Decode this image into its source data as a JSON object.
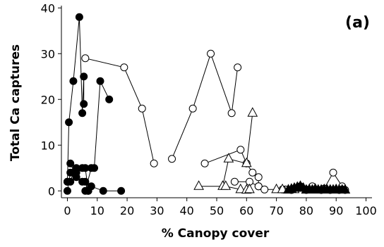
{
  "chart_data": {
    "type": "scatter",
    "panel_label": "(a)",
    "xlabel": "% Canopy cover",
    "ylabel": "Total Ca captures",
    "xlim": [
      -2,
      102
    ],
    "ylim": [
      -1.5,
      40.5
    ],
    "x_ticks": [
      0,
      10,
      20,
      30,
      40,
      50,
      60,
      70,
      80,
      90,
      100
    ],
    "y_ticks": [
      0,
      10,
      20,
      30,
      40
    ],
    "grid": false,
    "legend": "none",
    "series": [
      {
        "marker": "filled-circle",
        "color": "#000000",
        "segments": [
          [
            [
              0,
              2
            ],
            [
              0.5,
              15
            ],
            [
              2,
              24
            ],
            [
              4,
              38
            ],
            [
              5,
              17
            ],
            [
              5.5,
              25
            ],
            [
              5.5,
              19
            ]
          ],
          [
            [
              0,
              0
            ],
            [
              1,
              4
            ],
            [
              3,
              5
            ],
            [
              5,
              5
            ],
            [
              6,
              5
            ],
            [
              7,
              0
            ]
          ],
          [
            [
              1,
              6
            ],
            [
              3,
              3
            ],
            [
              5,
              2
            ],
            [
              6,
              2
            ],
            [
              7,
              0
            ]
          ],
          [
            [
              6,
              0
            ],
            [
              8,
              5
            ],
            [
              9,
              5
            ],
            [
              11,
              24
            ],
            [
              14,
              20
            ]
          ],
          [
            [
              8,
              1
            ],
            [
              12,
              0
            ],
            [
              18,
              0
            ]
          ],
          [
            [
              0,
              2
            ],
            [
              1,
              2
            ],
            [
              2,
              4
            ],
            [
              3,
              4
            ]
          ]
        ]
      },
      {
        "marker": "open-circle",
        "color": "#000000",
        "segments": [
          [
            [
              6,
              29
            ],
            [
              19,
              27
            ],
            [
              25,
              18
            ],
            [
              29,
              6
            ]
          ],
          [
            [
              35,
              7
            ],
            [
              42,
              18
            ],
            [
              48,
              30
            ],
            [
              55,
              17
            ],
            [
              57,
              27
            ]
          ],
          [
            [
              46,
              6
            ],
            [
              58,
              9
            ],
            [
              60,
              6
            ],
            [
              62,
              4
            ],
            [
              64,
              3
            ],
            [
              64,
              1
            ]
          ],
          [
            [
              56,
              2
            ],
            [
              61,
              2
            ],
            [
              64,
              1
            ],
            [
              66,
              0.3
            ],
            [
              73,
              0.3
            ]
          ],
          [
            [
              72,
              0.3
            ],
            [
              78,
              1
            ],
            [
              82,
              1
            ],
            [
              86,
              0.5
            ],
            [
              89,
              4
            ],
            [
              92,
              1
            ],
            [
              93,
              0.2
            ]
          ],
          [
            [
              75,
              0.2
            ],
            [
              80,
              0.2
            ],
            [
              85,
              0.2
            ],
            [
              88,
              0.2
            ],
            [
              91,
              0.2
            ],
            [
              92,
              0.3
            ]
          ]
        ]
      },
      {
        "marker": "open-triangle",
        "color": "#000000",
        "segments": [
          [
            [
              44,
              1
            ],
            [
              52,
              1
            ],
            [
              54,
              7
            ],
            [
              60,
              6
            ],
            [
              62,
              17
            ]
          ],
          [
            [
              53,
              1
            ],
            [
              58,
              0.3
            ],
            [
              60,
              0.2
            ],
            [
              61,
              0.3
            ]
          ],
          [
            [
              70,
              0.3
            ],
            [
              72,
              0.3
            ],
            [
              74,
              0.2
            ],
            [
              76,
              0.3
            ]
          ]
        ]
      },
      {
        "marker": "filled-triangle",
        "color": "#000000",
        "segments": [
          [
            [
              74,
              0.2
            ],
            [
              75,
              0.4
            ],
            [
              76,
              0.6
            ],
            [
              77,
              0.8
            ],
            [
              78,
              1
            ],
            [
              79,
              0.6
            ],
            [
              80,
              0.2
            ],
            [
              81,
              0.3
            ],
            [
              82,
              0.2
            ],
            [
              83,
              0.4
            ],
            [
              84,
              0.2
            ],
            [
              85,
              0.2
            ],
            [
              86,
              0.3
            ],
            [
              87,
              0.2
            ],
            [
              88,
              0.2
            ],
            [
              89,
              0.2
            ],
            [
              90,
              0.3
            ],
            [
              91,
              0.2
            ],
            [
              92,
              0.2
            ],
            [
              93,
              0.2
            ]
          ]
        ]
      }
    ]
  }
}
